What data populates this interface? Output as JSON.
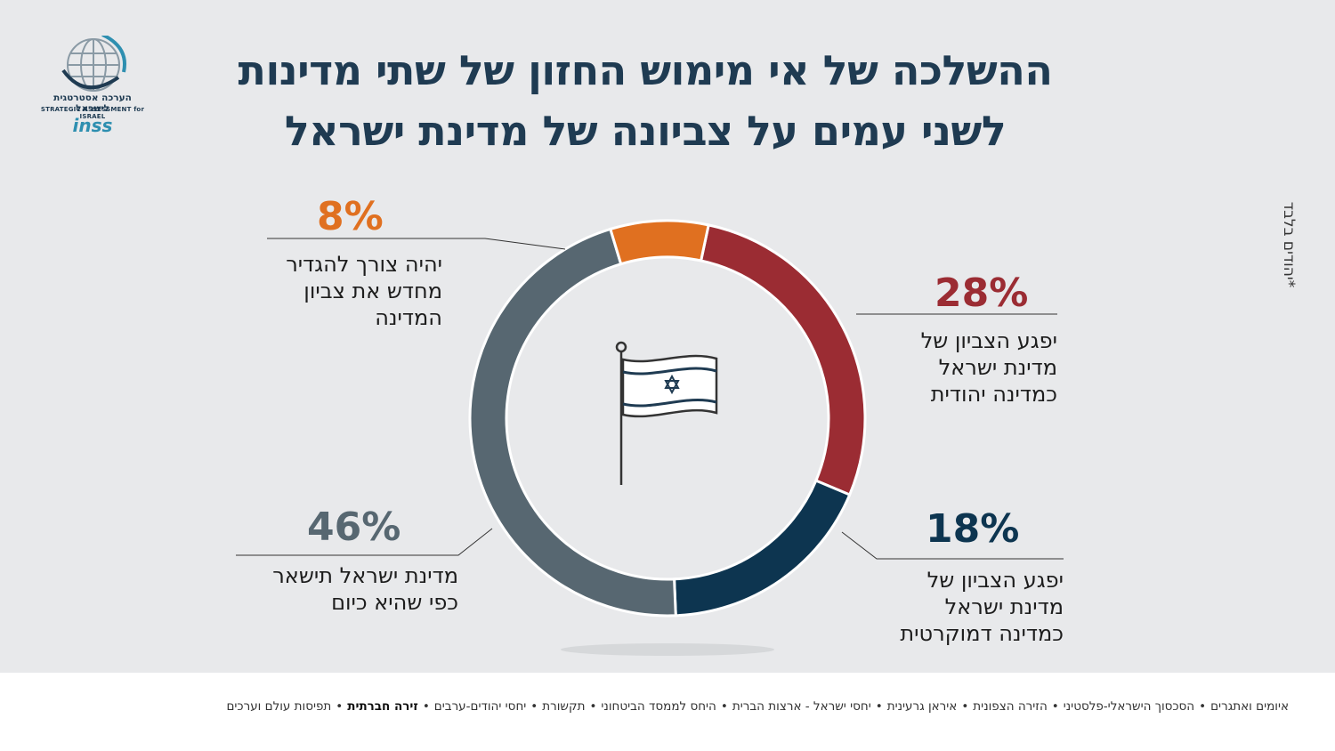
{
  "title": {
    "line1": "ההשלכה של אי מימוש החזון של שתי מדינות",
    "line2": "לשני עמים על צביונה של מדינת ישראל"
  },
  "logo": {
    "hebrew": "הערכה אסטרטגית לישראל",
    "english": "STRATEGIC ASSESSMENT for ISRAEL",
    "brand": "inss"
  },
  "side_note": "*יהודים בלבד",
  "chart_data": {
    "type": "donut",
    "slices": [
      {
        "value": 28,
        "label_pct": "28%",
        "label": "יפגע הצביון של\nמדינת ישראל\nכמדינה יהודית",
        "color": "#9b2c33"
      },
      {
        "value": 18,
        "label_pct": "18%",
        "label": "יפגע הצביון של\nמדינת ישראל\nכמדינה דמוקרטית",
        "color": "#0d3550"
      },
      {
        "value": 46,
        "label_pct": "46%",
        "label": "מדינת ישראל תישאר\nכפי שהיא כיום",
        "color": "#576771"
      },
      {
        "value": 8,
        "label_pct": "8%",
        "label": "יהיה צורך להגדיר\nמחדש את צביון\nהמדינה",
        "color": "#e07020"
      }
    ],
    "center_icon": "israel-flag-icon"
  },
  "footer": {
    "items": [
      {
        "text": "איומים ואתגרים",
        "bold": false
      },
      {
        "text": "הסכסוך הישראלי-פלסטיני",
        "bold": false
      },
      {
        "text": "הזירה הצפונית",
        "bold": false
      },
      {
        "text": "איראן גרעינית",
        "bold": false
      },
      {
        "text": "יחסי ישראל - ארצות הברית",
        "bold": false
      },
      {
        "text": "היחס לממסד הביטחוני",
        "bold": false
      },
      {
        "text": "תקשורת",
        "bold": false
      },
      {
        "text": "יחסי יהודים-ערבים",
        "bold": false
      },
      {
        "text": "זירה חברתית",
        "bold": true
      },
      {
        "text": "תפיסות עולם וערכים",
        "bold": false
      }
    ]
  }
}
